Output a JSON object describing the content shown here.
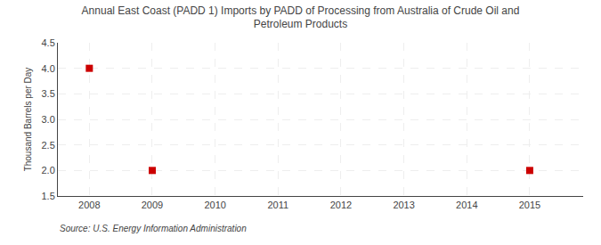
{
  "chart_data": {
    "type": "scatter",
    "title": "Annual East Coast (PADD 1) Imports by PADD of Processing from Australia of Crude Oil and\nPetroleum Products",
    "ylabel": "Thousand Barrels per Day",
    "annotations": [
      "Source: U.S. Energy Information Administration"
    ],
    "x": [
      2008,
      2009,
      2015
    ],
    "values": [
      4.0,
      2.0,
      2.0
    ],
    "color": "#cc0000",
    "marker": "square",
    "xlim": [
      2007.5,
      2015.85
    ],
    "ylim": [
      1.5,
      4.5
    ],
    "xticks": [
      2008,
      2009,
      2010,
      2011,
      2012,
      2013,
      2014,
      2015
    ],
    "yticks": [
      1.5,
      {
        "value": 2.0,
        "label": "2.0"
      },
      2.5,
      {
        "value": 3.0,
        "label": "3.0"
      },
      3.5,
      {
        "value": 4.0,
        "label": "4.0"
      },
      4.5
    ],
    "grid": true
  }
}
